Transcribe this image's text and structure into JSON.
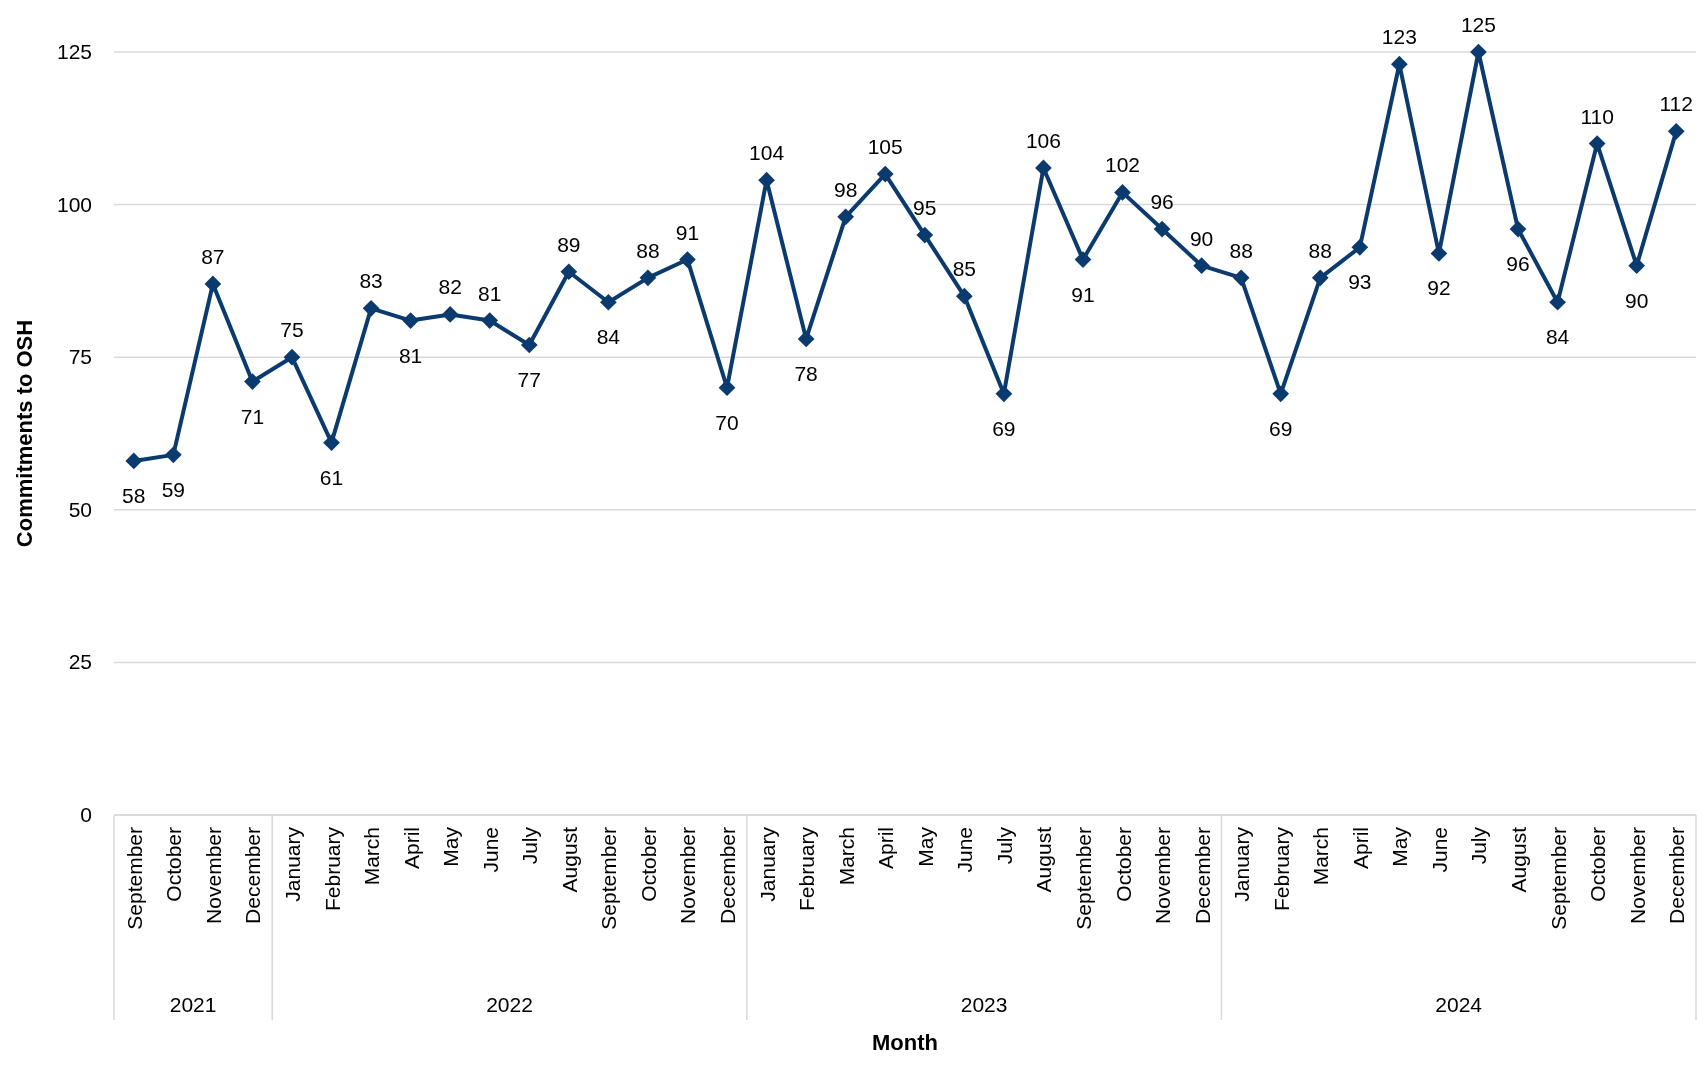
{
  "chart_data": {
    "type": "line",
    "xlabel": "Month",
    "ylabel": "Commitments to OSH",
    "categories": [
      "September",
      "October",
      "November",
      "December",
      "January",
      "February",
      "March",
      "April",
      "May",
      "June",
      "July",
      "August",
      "September",
      "October",
      "November",
      "December",
      "January",
      "February",
      "March",
      "April",
      "May",
      "June",
      "July",
      "August",
      "September",
      "October",
      "November",
      "December",
      "January",
      "February",
      "March",
      "April",
      "May",
      "June",
      "July",
      "August",
      "September",
      "October",
      "November",
      "December"
    ],
    "series": [
      {
        "color": "#0b3b6e",
        "values": [
          58,
          59,
          87,
          71,
          75,
          61,
          83,
          81,
          82,
          81,
          77,
          89,
          84,
          88,
          91,
          70,
          104,
          78,
          98,
          105,
          95,
          85,
          69,
          106,
          91,
          102,
          96,
          90,
          88,
          69,
          88,
          93,
          123,
          92,
          125,
          96,
          84,
          110,
          90,
          112
        ]
      }
    ],
    "annotations": [
      "2021",
      "2022",
      "2023",
      "2024"
    ],
    "ylim": [
      0,
      125
    ],
    "yticks": [
      0,
      25,
      50,
      75,
      100,
      125
    ],
    "grid": "y",
    "marker": "diamond",
    "line_style": "solid",
    "data_labels": true
  }
}
